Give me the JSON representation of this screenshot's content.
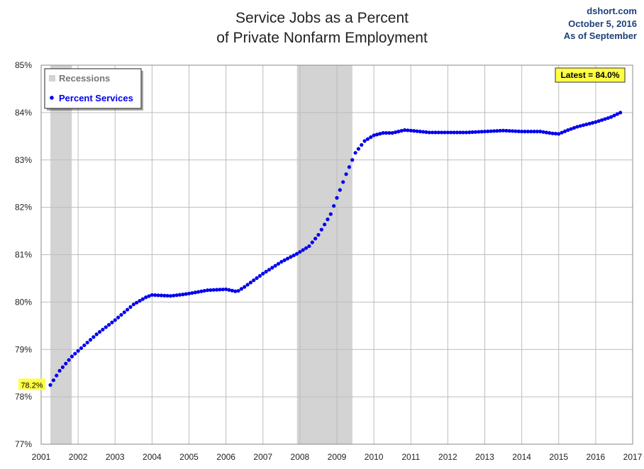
{
  "header": {
    "title_line1": "Service Jobs as a Percent",
    "title_line2": "of Private Nonfarm Employment",
    "source": "dshort.com",
    "date": "October 5, 2016",
    "as_of": "As of September"
  },
  "legend": {
    "recessions": "Recessions",
    "series": "Percent Services"
  },
  "annotations": {
    "latest": "Latest = 84.0%",
    "first": "78.2%"
  },
  "colors": {
    "series": "#0000ee",
    "recession": "#d3d3d3",
    "highlight": "#ffff44",
    "grid": "#bdbdbd"
  },
  "chart_data": {
    "type": "scatter",
    "title": "Service Jobs as a Percent of Private Nonfarm Employment",
    "xlim": [
      2001,
      2017
    ],
    "ylim": [
      77,
      85
    ],
    "x_ticks": [
      "2001",
      "2002",
      "2003",
      "2004",
      "2005",
      "2006",
      "2007",
      "2008",
      "2009",
      "2010",
      "2011",
      "2012",
      "2013",
      "2014",
      "2015",
      "2016",
      "2017"
    ],
    "y_ticks": [
      "77%",
      "78%",
      "79%",
      "80%",
      "81%",
      "82%",
      "83%",
      "84%",
      "85%"
    ],
    "grid": true,
    "legend_position": "top-left",
    "recessions": [
      [
        2001.25,
        2001.83
      ],
      [
        2007.92,
        2009.42
      ]
    ],
    "series": [
      {
        "name": "Percent Services",
        "start": "2001-04",
        "frequency": "monthly",
        "anchors": [
          [
            2001.25,
            78.25
          ],
          [
            2001.5,
            78.55
          ],
          [
            2001.83,
            78.85
          ],
          [
            2002.0,
            78.97
          ],
          [
            2002.5,
            79.32
          ],
          [
            2003.0,
            79.62
          ],
          [
            2003.5,
            79.95
          ],
          [
            2003.83,
            80.1
          ],
          [
            2004.0,
            80.15
          ],
          [
            2004.5,
            80.13
          ],
          [
            2004.83,
            80.16
          ],
          [
            2005.0,
            80.18
          ],
          [
            2005.5,
            80.25
          ],
          [
            2006.0,
            80.27
          ],
          [
            2006.3,
            80.22
          ],
          [
            2006.5,
            80.32
          ],
          [
            2007.0,
            80.6
          ],
          [
            2007.5,
            80.85
          ],
          [
            2007.92,
            81.02
          ],
          [
            2008.25,
            81.18
          ],
          [
            2008.5,
            81.42
          ],
          [
            2008.83,
            81.85
          ],
          [
            2009.0,
            82.2
          ],
          [
            2009.25,
            82.7
          ],
          [
            2009.5,
            83.15
          ],
          [
            2009.75,
            83.4
          ],
          [
            2010.0,
            83.52
          ],
          [
            2010.25,
            83.57
          ],
          [
            2010.5,
            83.57
          ],
          [
            2010.83,
            83.63
          ],
          [
            2011.0,
            83.62
          ],
          [
            2011.5,
            83.58
          ],
          [
            2012.0,
            83.58
          ],
          [
            2012.5,
            83.58
          ],
          [
            2013.0,
            83.6
          ],
          [
            2013.5,
            83.62
          ],
          [
            2014.0,
            83.6
          ],
          [
            2014.5,
            83.6
          ],
          [
            2014.83,
            83.56
          ],
          [
            2015.0,
            83.55
          ],
          [
            2015.25,
            83.63
          ],
          [
            2015.5,
            83.7
          ],
          [
            2016.0,
            83.8
          ],
          [
            2016.4,
            83.9
          ],
          [
            2016.67,
            84.0
          ]
        ]
      }
    ]
  }
}
